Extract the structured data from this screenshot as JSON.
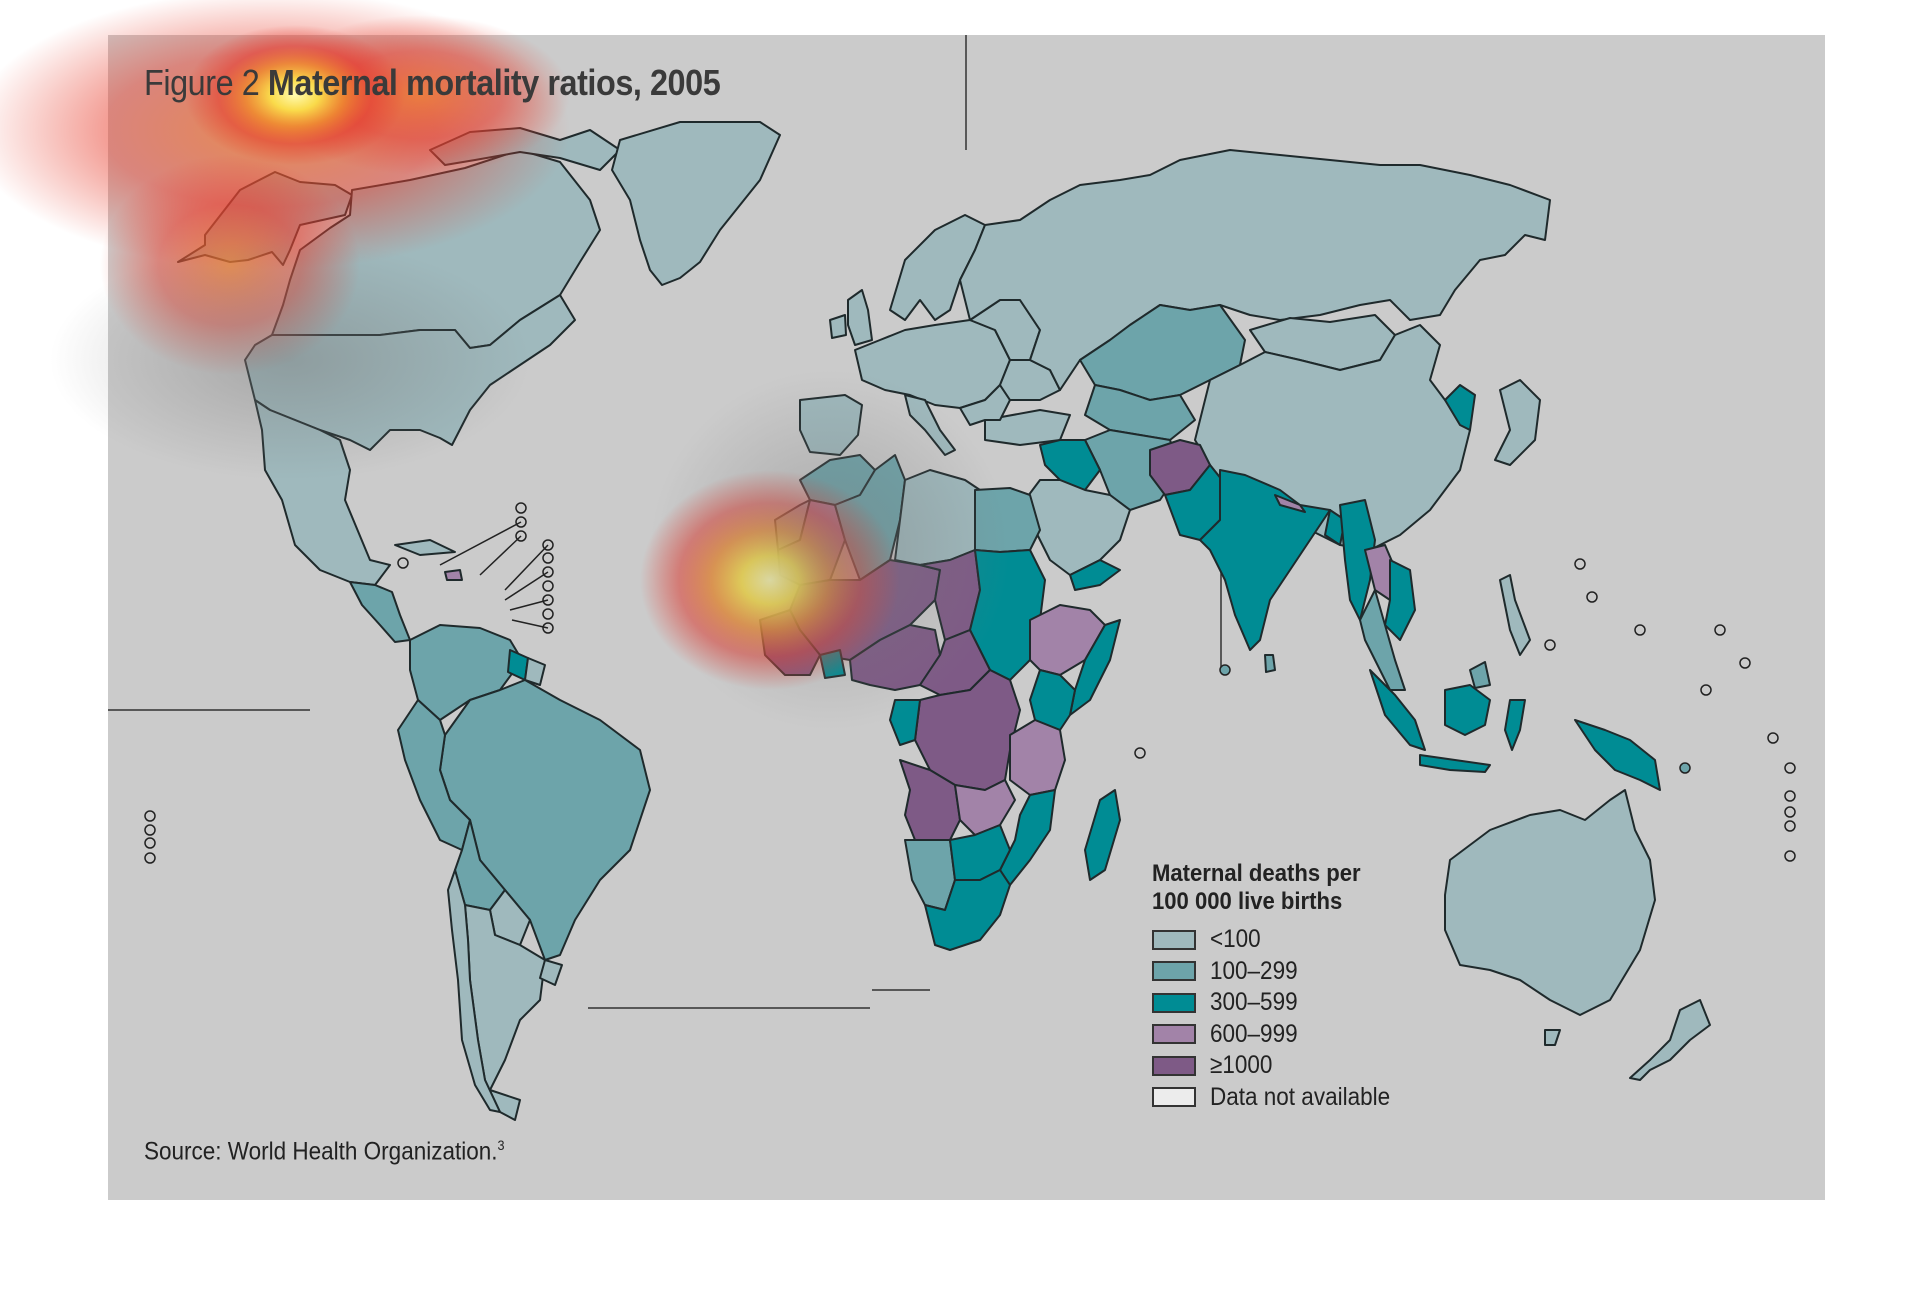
{
  "figure": {
    "label": "Figure 2",
    "title": "Maternal mortality ratios, 2005",
    "source": "Source: World Health Organization.",
    "source_ref": "3"
  },
  "legend": {
    "title_line1": "Maternal deaths per",
    "title_line2": "100 000 live births",
    "items": [
      {
        "label": "<100",
        "color": "#9fb9bd"
      },
      {
        "label": "100–299",
        "color": "#6da4aa"
      },
      {
        "label": "300–599",
        "color": "#008c94"
      },
      {
        "label": "600–999",
        "color": "#a283a8"
      },
      {
        "label": "≥1000",
        "color": "#7e5a86"
      },
      {
        "label": "Data not available",
        "color": "#ececec"
      }
    ]
  },
  "colors": {
    "background": "#cbcbcb",
    "outline": "#1f2a2c",
    "heat_core": "#fff7a0",
    "heat_mid": "#f6b02c",
    "heat_outer": "#e8352d"
  }
}
